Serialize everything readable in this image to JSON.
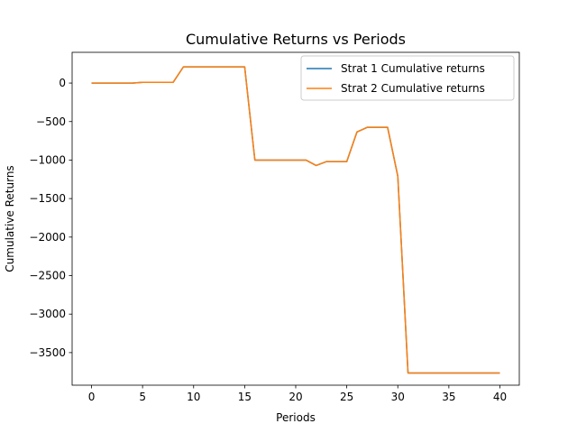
{
  "chart_data": {
    "type": "line",
    "title": "Cumulative Returns vs Periods",
    "xlabel": "Periods",
    "ylabel": "Cumulative Returns",
    "xlim": [
      -1.9,
      41.9
    ],
    "ylim": [
      -3923,
      399
    ],
    "xticks": [
      0,
      5,
      10,
      15,
      20,
      25,
      30,
      35,
      40
    ],
    "yticks": [
      0,
      -500,
      -1000,
      -1500,
      -2000,
      -2500,
      -3000,
      -3500
    ],
    "grid": false,
    "legend_position": "top-right",
    "x": [
      0,
      1,
      2,
      3,
      4,
      5,
      6,
      7,
      8,
      9,
      10,
      11,
      12,
      13,
      14,
      15,
      16,
      17,
      18,
      19,
      20,
      21,
      22,
      23,
      24,
      25,
      26,
      27,
      28,
      29,
      30,
      31,
      32,
      33,
      34,
      35,
      36,
      37,
      38,
      39,
      40
    ],
    "series": [
      {
        "name": "Strat 1 Cumulative returns",
        "color": "#1f77b4",
        "values": [
          0,
          0,
          0,
          0,
          0,
          10,
          10,
          10,
          10,
          210,
          210,
          210,
          210,
          210,
          210,
          210,
          -1000,
          -1000,
          -1000,
          -1000,
          -1000,
          -1000,
          -1070,
          -1020,
          -1020,
          -1020,
          -635,
          -575,
          -575,
          -575,
          -1210,
          -3765,
          -3765,
          -3765,
          -3765,
          -3765,
          -3765,
          -3765,
          -3765,
          -3765,
          -3765
        ]
      },
      {
        "name": "Strat 2 Cumulative returns",
        "color": "#ff7f0e",
        "values": [
          0,
          0,
          0,
          0,
          0,
          10,
          10,
          10,
          10,
          210,
          210,
          210,
          210,
          210,
          210,
          210,
          -1000,
          -1000,
          -1000,
          -1000,
          -1000,
          -1000,
          -1070,
          -1020,
          -1020,
          -1020,
          -635,
          -575,
          -575,
          -575,
          -1210,
          -3765,
          -3765,
          -3765,
          -3765,
          -3765,
          -3765,
          -3765,
          -3765,
          -3765,
          -3765
        ]
      }
    ]
  }
}
